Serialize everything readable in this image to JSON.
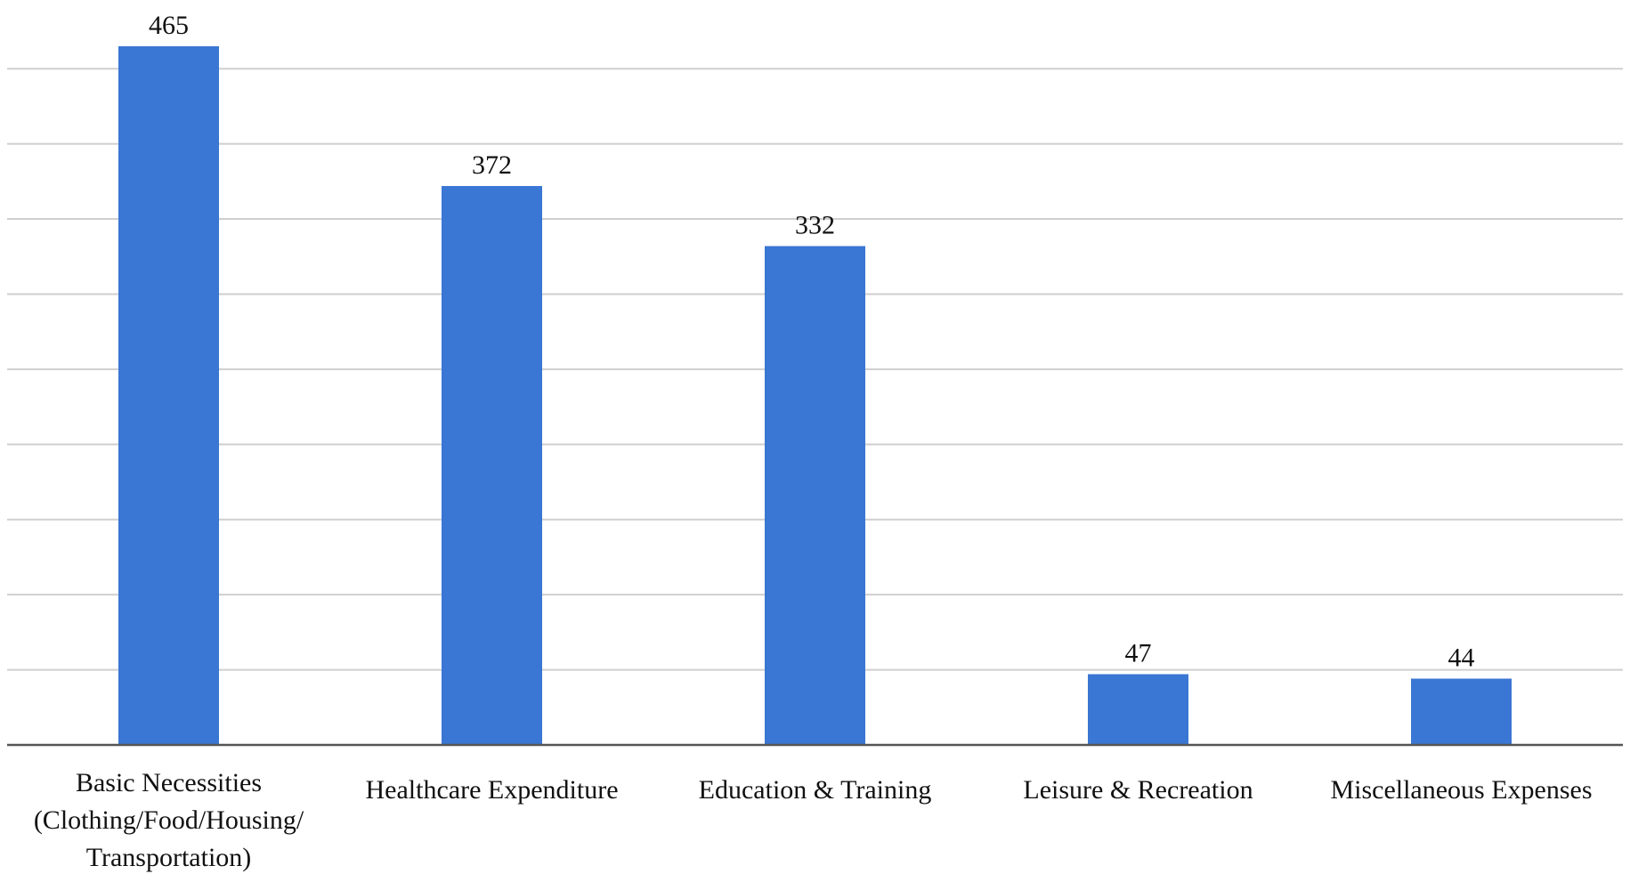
{
  "chart_data": {
    "type": "bar",
    "categories": [
      [
        "Basic Necessities",
        "(Clothing/Food/Housing/",
        "Transportation)"
      ],
      [
        "Healthcare Expenditure"
      ],
      [
        "Education & Training"
      ],
      [
        "Leisure & Recreation"
      ],
      [
        "Miscellaneous Expenses"
      ]
    ],
    "values": [
      465,
      372,
      332,
      47,
      44
    ],
    "data_labels": [
      "465",
      "372",
      "332",
      "47",
      "44"
    ],
    "title": "",
    "xlabel": "",
    "ylabel": "",
    "ylim": [
      0,
      475
    ],
    "grid": true,
    "gridline_step": 50,
    "legend": "none",
    "bar_color": "#3a76d3"
  }
}
